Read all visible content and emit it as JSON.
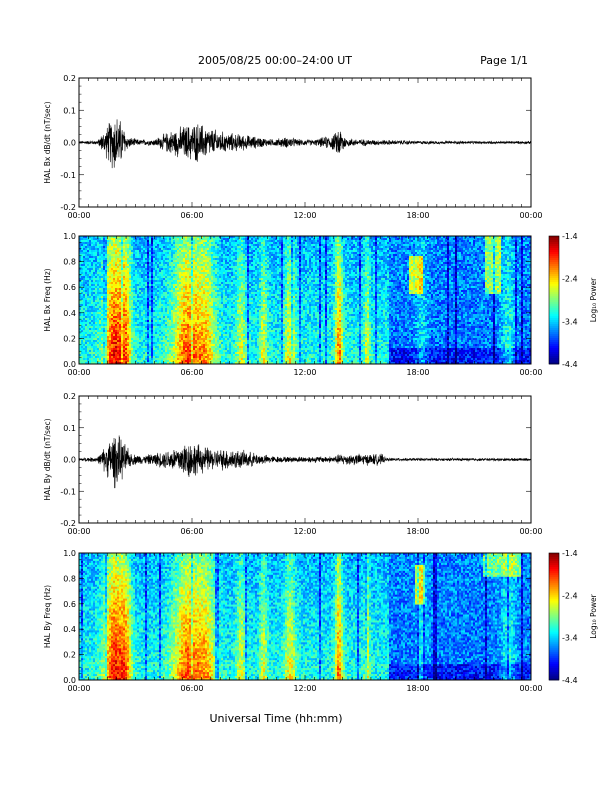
{
  "header": {
    "title": "2005/08/25  00:00–24:00 UT",
    "page": "Page 1/1"
  },
  "xlabel": "Universal Time (hh:mm)",
  "chart_data": [
    {
      "type": "line",
      "ylabel": "HAL Bx dB/dt (nT/sec)",
      "xlim": [
        0,
        24
      ],
      "ylim": [
        -0.2,
        0.2
      ],
      "xticks": [
        "00:00",
        "06:00",
        "12:00",
        "18:00",
        "00:00"
      ],
      "yticks": [
        "0.2",
        "0.1",
        "0.0",
        "-0.1",
        "-0.2"
      ],
      "envelope": [
        [
          0,
          0.005
        ],
        [
          1.0,
          0.008
        ],
        [
          1.5,
          0.06
        ],
        [
          1.9,
          0.11
        ],
        [
          2.2,
          0.08
        ],
        [
          2.6,
          0.02
        ],
        [
          3.2,
          0.01
        ],
        [
          4.0,
          0.012
        ],
        [
          4.8,
          0.04
        ],
        [
          5.6,
          0.06
        ],
        [
          6.3,
          0.07
        ],
        [
          7.0,
          0.05
        ],
        [
          7.8,
          0.035
        ],
        [
          8.5,
          0.03
        ],
        [
          9.5,
          0.02
        ],
        [
          10.2,
          0.012
        ],
        [
          11.2,
          0.02
        ],
        [
          11.6,
          0.012
        ],
        [
          12.5,
          0.01
        ],
        [
          13.6,
          0.03
        ],
        [
          13.8,
          0.06
        ],
        [
          14.2,
          0.015
        ],
        [
          15.5,
          0.01
        ],
        [
          17.0,
          0.008
        ],
        [
          18.0,
          0.006
        ],
        [
          20.0,
          0.005
        ],
        [
          24,
          0.005
        ]
      ]
    },
    {
      "type": "heatmap",
      "ylabel": "HAL Bx Freq (Hz)",
      "xlim": [
        0,
        24
      ],
      "ylim": [
        0,
        1.0
      ],
      "xticks": [
        "00:00",
        "06:00",
        "12:00",
        "18:00",
        "00:00"
      ],
      "yticks": [
        "1.0",
        "0.8",
        "0.6",
        "0.4",
        "0.2",
        "0.0"
      ],
      "colorbar": {
        "label": "Log₁₀ Power",
        "range": [
          -4.4,
          -1.4
        ],
        "ticks": [
          "-1.4",
          "-2.4",
          "-3.4",
          "-4.4"
        ]
      }
    },
    {
      "type": "line",
      "ylabel": "HAL By dB/dt (nT/sec)",
      "xlim": [
        0,
        24
      ],
      "ylim": [
        -0.2,
        0.2
      ],
      "xticks": [
        "00:00",
        "06:00",
        "12:00",
        "18:00",
        "00:00"
      ],
      "yticks": [
        "0.2",
        "0.1",
        "0.0",
        "-0.1",
        "-0.2"
      ],
      "envelope": [
        [
          0,
          0.005
        ],
        [
          1.0,
          0.01
        ],
        [
          1.5,
          0.06
        ],
        [
          1.9,
          0.1
        ],
        [
          2.3,
          0.07
        ],
        [
          2.8,
          0.02
        ],
        [
          3.5,
          0.015
        ],
        [
          4.5,
          0.03
        ],
        [
          5.3,
          0.05
        ],
        [
          5.8,
          0.07
        ],
        [
          6.5,
          0.05
        ],
        [
          7.2,
          0.035
        ],
        [
          8.0,
          0.04
        ],
        [
          8.8,
          0.03
        ],
        [
          9.6,
          0.02
        ],
        [
          10.3,
          0.012
        ],
        [
          11.0,
          0.01
        ],
        [
          13.5,
          0.012
        ],
        [
          13.9,
          0.02
        ],
        [
          16.1,
          0.02
        ],
        [
          16.3,
          0.005
        ],
        [
          18.0,
          0.005
        ],
        [
          24,
          0.005
        ]
      ]
    },
    {
      "type": "heatmap",
      "ylabel": "HAL By Freq (Hz)",
      "xlim": [
        0,
        24
      ],
      "ylim": [
        0,
        1.0
      ],
      "xticks": [
        "00:00",
        "06:00",
        "12:00",
        "18:00",
        "00:00"
      ],
      "yticks": [
        "1.0",
        "0.8",
        "0.6",
        "0.4",
        "0.2",
        "0.0"
      ],
      "colorbar": {
        "label": "Log₁₀ Power",
        "range": [
          -4.4,
          -1.4
        ],
        "ticks": [
          "-1.4",
          "-2.4",
          "-3.4",
          "-4.4"
        ]
      }
    }
  ]
}
